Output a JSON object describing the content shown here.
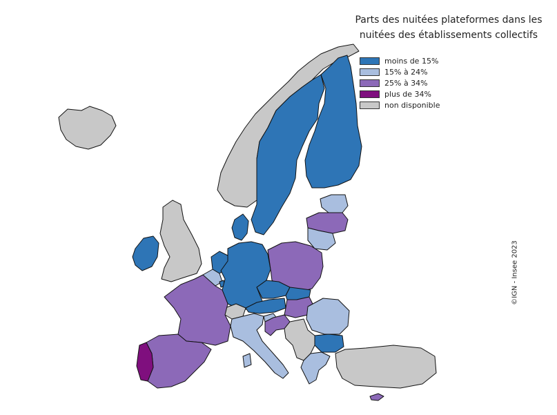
{
  "title_line1": "Parts des nuitées plateformes dans les",
  "title_line2": "nuitées des établissements collectifs",
  "legend": [
    {
      "label": "moins de 15%",
      "color": "#2e75b6"
    },
    {
      "label": "15% à 24%",
      "color": "#a9bedf"
    },
    {
      "label": "25% à 34%",
      "color": "#8c69b8"
    },
    {
      "label": "plus de 34%",
      "color": "#7f0f7e"
    },
    {
      "label": "non disponible",
      "color": "#c8c8c8"
    }
  ],
  "copyright": "©IGN - Insee 2023",
  "categories": {
    "iceland": "non disponible",
    "norway": "non disponible",
    "sweden": "moins de 15%",
    "finland": "moins de 15%",
    "uk": "non disponible",
    "ireland": "moins de 15%",
    "denmark": "moins de 15%",
    "netherlands": "moins de 15%",
    "belgium": "15% à 24%",
    "luxembourg": "moins de 15%",
    "germany": "moins de 15%",
    "poland": "25% à 34%",
    "estonia": "15% à 24%",
    "latvia": "25% à 34%",
    "lithuania": "15% à 24%",
    "czechia": "moins de 15%",
    "slovakia": "moins de 15%",
    "austria": "moins de 15%",
    "hungary": "25% à 34%",
    "switzerland": "non disponible",
    "france": "25% à 34%",
    "spain": "25% à 34%",
    "portugal": "plus de 34%",
    "italy": "15% à 24%",
    "slovenia": "15% à 24%",
    "croatia": "25% à 34%",
    "romania": "15% à 24%",
    "bulgaria": "moins de 15%",
    "greece": "15% à 24%",
    "turkey": "non disponible",
    "cyprus": "25% à 34%",
    "balkans": "non disponible"
  }
}
